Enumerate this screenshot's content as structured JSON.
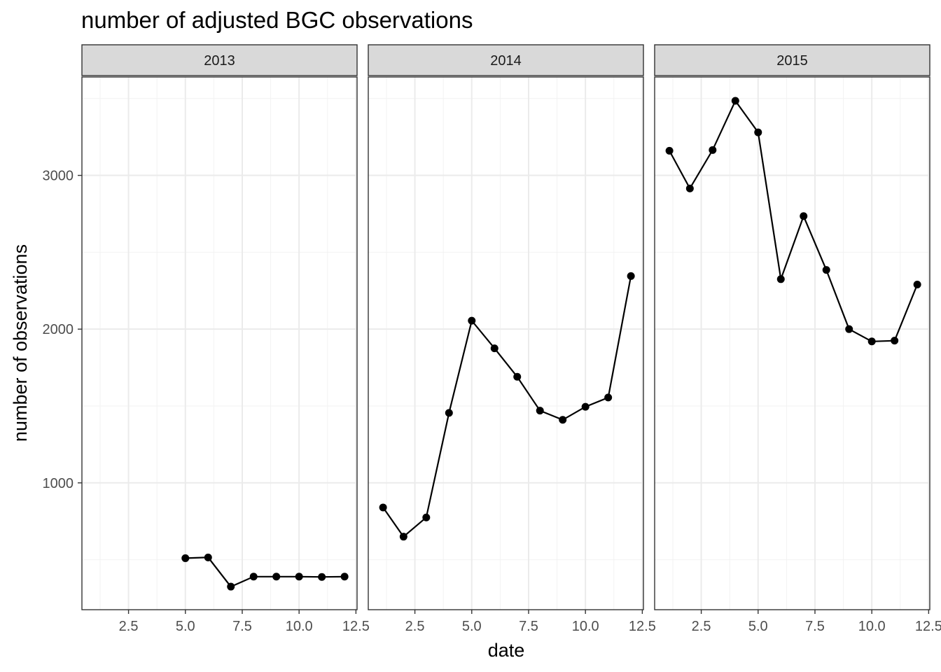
{
  "chart_data": {
    "type": "line",
    "title": "number of adjusted BGC observations",
    "xlabel": "date",
    "ylabel": "number of observations",
    "facet_by": "year",
    "xlim": [
      0.45,
      12.55
    ],
    "ylim": [
      175,
      3640
    ],
    "x_ticks": [
      2.5,
      5.0,
      7.5,
      10.0,
      12.5
    ],
    "x_tick_labels": [
      "2.5",
      "5.0",
      "7.5",
      "10.0",
      "12.5"
    ],
    "y_ticks": [
      1000,
      2000,
      3000
    ],
    "y_tick_labels": [
      "1000",
      "2000",
      "3000"
    ],
    "grid": true,
    "legend": "none",
    "facets": [
      {
        "label": "2013",
        "x": [
          5,
          6,
          7,
          8,
          9,
          10,
          11,
          12
        ],
        "y": [
          510,
          515,
          325,
          390,
          390,
          390,
          388,
          390
        ]
      },
      {
        "label": "2014",
        "x": [
          1.1,
          2,
          3,
          4,
          5,
          6,
          7,
          8,
          9,
          10,
          11,
          12
        ],
        "y": [
          840,
          650,
          775,
          1455,
          2055,
          1875,
          1690,
          1470,
          1410,
          1495,
          1555,
          2345
        ]
      },
      {
        "label": "2015",
        "x": [
          1.1,
          2,
          3,
          4,
          5,
          6,
          7,
          8,
          9,
          10,
          11,
          12
        ],
        "y": [
          3160,
          2915,
          3165,
          3485,
          3280,
          2325,
          2735,
          2385,
          2000,
          1920,
          1925,
          2290
        ]
      }
    ]
  }
}
